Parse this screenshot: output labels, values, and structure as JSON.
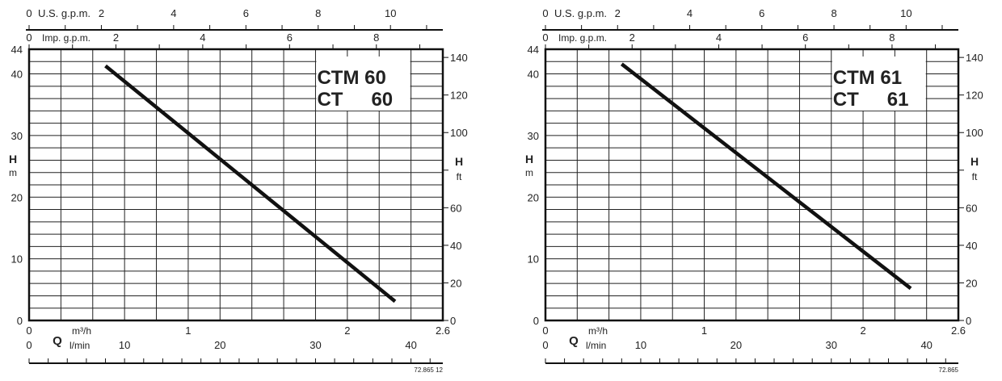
{
  "chart_data": [
    {
      "type": "line",
      "title_line1": "CTM 60",
      "title_line2_a": "CT",
      "title_line2_b": "60",
      "code": "72.865 12",
      "xlabel": "Q",
      "x_unit_primary": "m³/h",
      "x_unit_secondary": "l/min",
      "y_label_left": "H",
      "y_unit_left": "m",
      "y_label_right": "H",
      "y_unit_right": "ft",
      "top_axis_1_label": "U.S. g.p.m.",
      "top_axis_2_label": "Imp. g.p.m.",
      "xlim": [
        0,
        2.6
      ],
      "ylim": [
        0,
        44
      ],
      "x_ticks": [
        "0",
        "1",
        "2",
        "2.6"
      ],
      "y_ticks_left": [
        "0",
        "10",
        "20",
        "30",
        "40",
        "44"
      ],
      "y_ticks_right": [
        "0",
        "20",
        "40",
        "60",
        "100",
        "120",
        "140"
      ],
      "usgpm_ticks": [
        "0",
        "2",
        "4",
        "6",
        "8",
        "10"
      ],
      "impgpm_ticks": [
        "0",
        "2",
        "4",
        "6",
        "8"
      ],
      "lmin_ticks": [
        "0",
        "10",
        "20",
        "30",
        "40"
      ],
      "grid": true,
      "series": [
        {
          "name": "CTM 60 / CT 60",
          "x": [
            0.48,
            2.3
          ],
          "y": [
            41.3,
            3.1
          ]
        }
      ]
    },
    {
      "type": "line",
      "title_line1": "CTM 61",
      "title_line2_a": "CT",
      "title_line2_b": "61",
      "code": "72.865",
      "xlabel": "Q",
      "x_unit_primary": "m³/h",
      "x_unit_secondary": "l/min",
      "y_label_left": "H",
      "y_unit_left": "m",
      "y_label_right": "H",
      "y_unit_right": "ft",
      "top_axis_1_label": "U.S. g.p.m.",
      "top_axis_2_label": "Imp. g.p.m.",
      "xlim": [
        0,
        2.6
      ],
      "ylim": [
        0,
        44
      ],
      "x_ticks": [
        "0",
        "1",
        "2",
        "2.6"
      ],
      "y_ticks_left": [
        "0",
        "10",
        "20",
        "30",
        "40",
        "44"
      ],
      "y_ticks_right": [
        "0",
        "20",
        "40",
        "60",
        "100",
        "120",
        "140"
      ],
      "usgpm_ticks": [
        "0",
        "2",
        "4",
        "6",
        "8",
        "10"
      ],
      "impgpm_ticks": [
        "0",
        "2",
        "4",
        "6",
        "8"
      ],
      "lmin_ticks": [
        "0",
        "10",
        "20",
        "30",
        "40"
      ],
      "grid": true,
      "series": [
        {
          "name": "CTM 61 / CT 61",
          "x": [
            0.48,
            2.3
          ],
          "y": [
            41.6,
            5.2
          ]
        }
      ]
    }
  ]
}
